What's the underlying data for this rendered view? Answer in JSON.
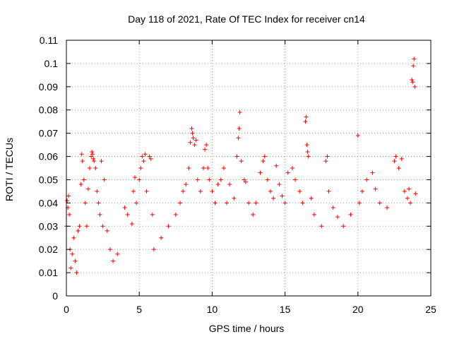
{
  "chart_data": {
    "type": "scatter",
    "title": "Day 118 of 2021, Rate Of TEC Index for receiver cn14",
    "xlabel": "GPS time / hours",
    "ylabel": "ROTI / TECUs",
    "xlim": [
      0,
      25
    ],
    "ylim": [
      0,
      0.11
    ],
    "xticks": [
      0,
      5,
      10,
      15,
      20,
      25
    ],
    "xtick_labels": [
      "0",
      "5",
      "10",
      "15",
      "20",
      "25"
    ],
    "yticks": [
      0,
      0.01,
      0.02,
      0.03,
      0.04,
      0.05,
      0.06,
      0.07,
      0.08,
      0.09,
      0.1,
      0.11
    ],
    "ytick_labels": [
      "0",
      "0.01",
      "0.02",
      "0.03",
      "0.04",
      "0.05",
      "0.06",
      "0.07",
      "0.08",
      "0.09",
      "0.1",
      "0.11"
    ],
    "grid": true,
    "marker": "+",
    "color": "#ff0000",
    "series": [
      {
        "name": "ROTI",
        "points": [
          [
            0.0,
            0.03
          ],
          [
            0.05,
            0.041
          ],
          [
            0.1,
            0.038
          ],
          [
            0.15,
            0.043
          ],
          [
            0.2,
            0.035
          ],
          [
            0.25,
            0.02
          ],
          [
            0.3,
            0.012
          ],
          [
            0.4,
            0.018
          ],
          [
            0.5,
            0.025
          ],
          [
            0.6,
            0.015
          ],
          [
            0.7,
            0.01
          ],
          [
            0.8,
            0.028
          ],
          [
            0.9,
            0.03
          ],
          [
            1.0,
            0.048
          ],
          [
            1.05,
            0.061
          ],
          [
            1.1,
            0.058
          ],
          [
            1.2,
            0.05
          ],
          [
            1.3,
            0.04
          ],
          [
            1.4,
            0.03
          ],
          [
            1.5,
            0.046
          ],
          [
            1.6,
            0.055
          ],
          [
            1.7,
            0.06
          ],
          [
            1.75,
            0.062
          ],
          [
            1.8,
            0.061
          ],
          [
            1.85,
            0.059
          ],
          [
            1.9,
            0.058
          ],
          [
            2.0,
            0.055
          ],
          [
            2.1,
            0.045
          ],
          [
            2.2,
            0.04
          ],
          [
            2.3,
            0.035
          ],
          [
            2.4,
            0.058
          ],
          [
            2.5,
            0.03
          ],
          [
            2.6,
            0.05
          ],
          [
            2.8,
            0.028
          ],
          [
            3.0,
            0.02
          ],
          [
            3.2,
            0.015
          ],
          [
            3.5,
            0.018
          ],
          [
            4.0,
            0.038
          ],
          [
            4.2,
            0.035
          ],
          [
            4.5,
            0.031
          ],
          [
            4.6,
            0.045
          ],
          [
            4.7,
            0.051
          ],
          [
            4.8,
            0.04
          ],
          [
            5.0,
            0.05
          ],
          [
            5.1,
            0.055
          ],
          [
            5.2,
            0.06
          ],
          [
            5.3,
            0.058
          ],
          [
            5.4,
            0.061
          ],
          [
            5.5,
            0.045
          ],
          [
            5.7,
            0.06
          ],
          [
            5.8,
            0.059
          ],
          [
            5.9,
            0.035
          ],
          [
            6.0,
            0.02
          ],
          [
            6.5,
            0.025
          ],
          [
            7.0,
            0.03
          ],
          [
            7.5,
            0.035
          ],
          [
            7.8,
            0.04
          ],
          [
            8.0,
            0.045
          ],
          [
            8.2,
            0.048
          ],
          [
            8.4,
            0.055
          ],
          [
            8.5,
            0.066
          ],
          [
            8.6,
            0.072
          ],
          [
            8.65,
            0.07
          ],
          [
            8.7,
            0.068
          ],
          [
            8.8,
            0.065
          ],
          [
            8.9,
            0.067
          ],
          [
            9.0,
            0.05
          ],
          [
            9.2,
            0.045
          ],
          [
            9.4,
            0.055
          ],
          [
            9.5,
            0.063
          ],
          [
            9.6,
            0.065
          ],
          [
            9.7,
            0.055
          ],
          [
            9.8,
            0.05
          ],
          [
            10.0,
            0.045
          ],
          [
            10.2,
            0.04
          ],
          [
            10.4,
            0.048
          ],
          [
            10.6,
            0.05
          ],
          [
            10.8,
            0.055
          ],
          [
            11.0,
            0.04
          ],
          [
            11.2,
            0.048
          ],
          [
            11.5,
            0.042
          ],
          [
            11.7,
            0.06
          ],
          [
            11.8,
            0.068
          ],
          [
            11.85,
            0.072
          ],
          [
            11.9,
            0.079
          ],
          [
            12.0,
            0.058
          ],
          [
            12.2,
            0.05
          ],
          [
            12.3,
            0.049
          ],
          [
            12.5,
            0.04
          ],
          [
            12.8,
            0.035
          ],
          [
            13.0,
            0.04
          ],
          [
            13.3,
            0.053
          ],
          [
            13.5,
            0.058
          ],
          [
            13.6,
            0.06
          ],
          [
            13.8,
            0.05
          ],
          [
            14.0,
            0.045
          ],
          [
            14.2,
            0.042
          ],
          [
            14.4,
            0.056
          ],
          [
            14.6,
            0.048
          ],
          [
            14.8,
            0.043
          ],
          [
            15.0,
            0.04
          ],
          [
            15.2,
            0.053
          ],
          [
            15.5,
            0.055
          ],
          [
            15.7,
            0.05
          ],
          [
            16.0,
            0.045
          ],
          [
            16.2,
            0.04
          ],
          [
            16.4,
            0.075
          ],
          [
            16.45,
            0.077
          ],
          [
            16.5,
            0.065
          ],
          [
            16.55,
            0.062
          ],
          [
            16.6,
            0.06
          ],
          [
            16.8,
            0.042
          ],
          [
            17.0,
            0.035
          ],
          [
            17.5,
            0.03
          ],
          [
            17.8,
            0.058
          ],
          [
            17.9,
            0.06
          ],
          [
            18.0,
            0.045
          ],
          [
            18.3,
            0.038
          ],
          [
            18.6,
            0.034
          ],
          [
            19.0,
            0.03
          ],
          [
            19.5,
            0.035
          ],
          [
            20.0,
            0.069
          ],
          [
            20.1,
            0.04
          ],
          [
            20.3,
            0.045
          ],
          [
            20.6,
            0.05
          ],
          [
            21.0,
            0.053
          ],
          [
            21.2,
            0.046
          ],
          [
            21.5,
            0.04
          ],
          [
            22.0,
            0.038
          ],
          [
            22.5,
            0.058
          ],
          [
            22.6,
            0.06
          ],
          [
            22.8,
            0.055
          ],
          [
            23.0,
            0.059
          ],
          [
            23.2,
            0.045
          ],
          [
            23.4,
            0.042
          ],
          [
            23.5,
            0.046
          ],
          [
            23.6,
            0.04
          ],
          [
            23.7,
            0.093
          ],
          [
            23.75,
            0.092
          ],
          [
            23.8,
            0.099
          ],
          [
            23.85,
            0.102
          ],
          [
            23.9,
            0.09
          ],
          [
            23.95,
            0.044
          ]
        ]
      }
    ]
  }
}
